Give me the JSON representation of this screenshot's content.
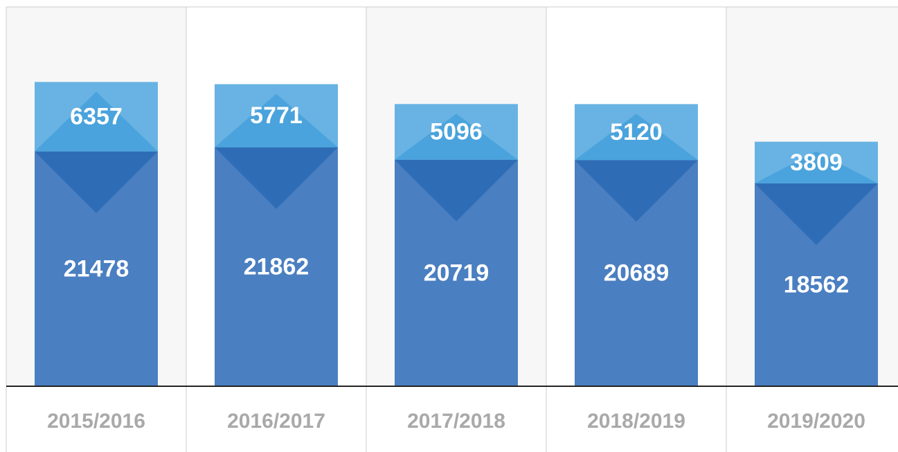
{
  "chart_data": {
    "type": "stacked_bar",
    "categories": [
      "2015/2016",
      "2016/2017",
      "2017/2018",
      "2018/2019",
      "2019/2020"
    ],
    "series": [
      {
        "color": "#4a7fc1",
        "values": [
          21478,
          21862,
          20719,
          20689,
          18562
        ]
      },
      {
        "color": "#68b3e3",
        "values": [
          6357,
          5771,
          5096,
          5120,
          3809
        ]
      }
    ],
    "ylim": [
      0,
      34700
    ]
  }
}
